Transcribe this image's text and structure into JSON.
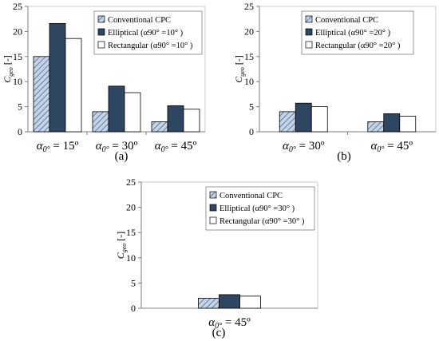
{
  "colors": {
    "conventional_fill": "#c7d3e3",
    "conventional_hatch": "#5b7fae",
    "elliptical": "#2e4662",
    "rectangular": "#ffffff",
    "axis": "#000000"
  },
  "chart_data": [
    {
      "type": "bar",
      "panel_label": "(a)",
      "ylabel": "C_geo [-]",
      "ylabel_main": "C",
      "ylabel_sub": "geo",
      "ylabel_unit": " [-]",
      "ylim": [
        0,
        25
      ],
      "yticks": [
        0,
        5,
        10,
        15,
        20,
        25
      ],
      "categories": [
        "α0° = 15º",
        "α0° = 30º",
        "α0° = 45º"
      ],
      "category_parts": [
        [
          "α",
          "0°",
          " = 15º"
        ],
        [
          "α",
          "0°",
          " = 30º"
        ],
        [
          "α",
          "0°",
          " = 45º"
        ]
      ],
      "legend_position": "top-right",
      "series": [
        {
          "name": "Conventional CPC",
          "style": "hatched",
          "values": [
            15.0,
            4.0,
            2.0
          ]
        },
        {
          "name": "Elliptical (α90° =10° )",
          "style": "dark",
          "values": [
            21.6,
            9.1,
            5.2
          ]
        },
        {
          "name": "Rectangular (α90° =10° )",
          "style": "white",
          "values": [
            18.6,
            7.8,
            4.5
          ]
        }
      ]
    },
    {
      "type": "bar",
      "panel_label": "(b)",
      "ylabel": "C_geo [-]",
      "ylabel_main": "C",
      "ylabel_sub": "geo",
      "ylabel_unit": " [-]",
      "ylim": [
        0,
        25
      ],
      "yticks": [
        0,
        5,
        10,
        15,
        20,
        25
      ],
      "categories": [
        "α0° = 30º",
        "α0° = 45º"
      ],
      "category_parts": [
        [
          "α",
          "0°",
          " = 30º"
        ],
        [
          "α",
          "0°",
          " = 45º"
        ]
      ],
      "legend_position": "top-right",
      "series": [
        {
          "name": "Conventional CPC",
          "style": "hatched",
          "values": [
            4.0,
            2.0
          ]
        },
        {
          "name": "Elliptical (α90° =20° )",
          "style": "dark",
          "values": [
            5.7,
            3.6
          ]
        },
        {
          "name": "Rectangular (α90° =20° )",
          "style": "white",
          "values": [
            5.0,
            3.1
          ]
        }
      ]
    },
    {
      "type": "bar",
      "panel_label": "(c)",
      "ylabel": "C_geo [-]",
      "ylabel_main": "C",
      "ylabel_sub": "geo",
      "ylabel_unit": " [-]",
      "ylim": [
        0,
        25
      ],
      "yticks": [
        0,
        5,
        10,
        15,
        20,
        25
      ],
      "categories": [
        "α0° = 45º"
      ],
      "category_parts": [
        [
          "α",
          "0°",
          " = 45º"
        ]
      ],
      "legend_position": "top-right",
      "series": [
        {
          "name": "Conventional CPC",
          "style": "hatched",
          "values": [
            2.0
          ]
        },
        {
          "name": "Elliptical (α90° =30° )",
          "style": "dark",
          "values": [
            2.7
          ]
        },
        {
          "name": "Rectangular (α90° =30° )",
          "style": "white",
          "values": [
            2.4
          ]
        }
      ]
    }
  ]
}
